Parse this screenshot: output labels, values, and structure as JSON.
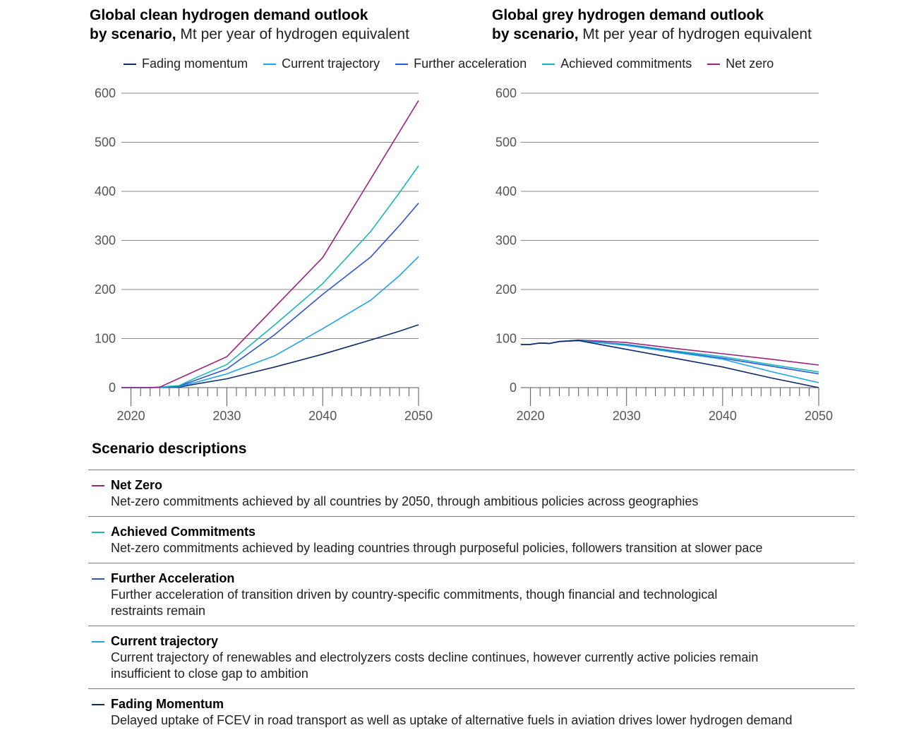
{
  "colors": {
    "fading_momentum": "#0e2a6b",
    "current_trajectory": "#1fa3e8",
    "further_acceleration": "#2f55d6",
    "achieved_commitments": "#19b7b5",
    "net_zero": "#9b2380"
  },
  "legend": [
    {
      "label": "Fading momentum",
      "color": "#0e2a6b"
    },
    {
      "label": "Current trajectory",
      "color": "#1fa3e8"
    },
    {
      "label": "Further acceleration",
      "color": "#2f55d6"
    },
    {
      "label": "Achieved commitments",
      "color": "#19b7b5"
    },
    {
      "label": "Net zero",
      "color": "#9b2380"
    }
  ],
  "chart_data": [
    {
      "type": "line",
      "title": "Global clean hydrogen demand outlook",
      "title_bold_part": "by scenario,",
      "subtitle": "Mt per year of hydrogen equivalent",
      "xlabel": "",
      "ylabel": "",
      "xlim": [
        2019,
        2050
      ],
      "ylim": [
        0,
        600
      ],
      "yticks": [
        0,
        100,
        200,
        300,
        400,
        500,
        600
      ],
      "xticks": [
        2020,
        2030,
        2040,
        2050
      ],
      "grid": true,
      "series": [
        {
          "name": "Fading momentum",
          "color": "#0e2a6b",
          "x": [
            2019,
            2022,
            2025,
            2027,
            2030,
            2035,
            2040,
            2045,
            2048,
            2050
          ],
          "y": [
            0,
            0,
            1,
            8,
            18,
            42,
            68,
            97,
            115,
            128
          ]
        },
        {
          "name": "Current trajectory",
          "color": "#1fa3e8",
          "x": [
            2019,
            2022,
            2025,
            2027,
            2030,
            2035,
            2040,
            2045,
            2048,
            2050
          ],
          "y": [
            0,
            0,
            2,
            12,
            28,
            65,
            120,
            178,
            228,
            267
          ]
        },
        {
          "name": "Further acceleration",
          "color": "#2f55d6",
          "x": [
            2019,
            2022,
            2025,
            2027,
            2030,
            2035,
            2040,
            2045,
            2048,
            2050
          ],
          "y": [
            0,
            0,
            3,
            17,
            38,
            108,
            190,
            266,
            330,
            376
          ]
        },
        {
          "name": "Achieved commitments",
          "color": "#19b7b5",
          "x": [
            2019,
            2022,
            2025,
            2027,
            2030,
            2035,
            2040,
            2045,
            2048,
            2050
          ],
          "y": [
            0,
            0,
            4,
            22,
            47,
            128,
            212,
            318,
            397,
            452
          ]
        },
        {
          "name": "Net zero",
          "color": "#9b2380",
          "x": [
            2019,
            2022,
            2023,
            2030,
            2040,
            2050
          ],
          "y": [
            0,
            0,
            1,
            63,
            265,
            585
          ]
        }
      ]
    },
    {
      "type": "line",
      "title": "Global grey hydrogen demand outlook",
      "title_bold_part": "by scenario,",
      "subtitle": "Mt per year of hydrogen equivalent",
      "xlabel": "",
      "ylabel": "",
      "xlim": [
        2019,
        2050
      ],
      "ylim": [
        0,
        600
      ],
      "yticks": [
        0,
        100,
        200,
        300,
        400,
        500,
        600
      ],
      "xticks": [
        2020,
        2030,
        2040,
        2050
      ],
      "grid": true,
      "series": [
        {
          "name": "Net zero",
          "color": "#9b2380",
          "x": [
            2019,
            2020,
            2021,
            2022,
            2023,
            2025,
            2030,
            2035,
            2040,
            2045,
            2050
          ],
          "y": [
            88,
            88,
            91,
            90,
            94,
            97,
            92,
            80,
            69,
            58,
            46
          ]
        },
        {
          "name": "Achieved commitments",
          "color": "#19b7b5",
          "x": [
            2019,
            2020,
            2021,
            2022,
            2023,
            2025,
            2030,
            2035,
            2040,
            2045,
            2050
          ],
          "y": [
            88,
            88,
            91,
            90,
            94,
            96,
            88,
            75,
            63,
            47,
            32
          ]
        },
        {
          "name": "Further acceleration",
          "color": "#2f55d6",
          "x": [
            2019,
            2020,
            2021,
            2022,
            2023,
            2025,
            2030,
            2035,
            2040,
            2045,
            2050
          ],
          "y": [
            88,
            88,
            91,
            90,
            94,
            96,
            87,
            73,
            60,
            44,
            28
          ]
        },
        {
          "name": "Current trajectory",
          "color": "#1fa3e8",
          "x": [
            2019,
            2020,
            2021,
            2022,
            2023,
            2025,
            2030,
            2035,
            2040,
            2045,
            2050
          ],
          "y": [
            88,
            88,
            91,
            90,
            94,
            96,
            86,
            72,
            58,
            33,
            10
          ]
        },
        {
          "name": "Fading momentum",
          "color": "#0e2a6b",
          "x": [
            2019,
            2020,
            2021,
            2022,
            2023,
            2025,
            2030,
            2035,
            2040,
            2045,
            2050
          ],
          "y": [
            88,
            88,
            91,
            90,
            94,
            96,
            78,
            60,
            42,
            20,
            0
          ]
        }
      ]
    }
  ],
  "descriptions": {
    "heading": "Scenario descriptions",
    "items": [
      {
        "name": "Net Zero",
        "color": "#9b2380",
        "text": "Net-zero commitments achieved by all countries by 2050, through ambitious policies across geographies"
      },
      {
        "name": "Achieved Commitments",
        "color": "#19b7b5",
        "text": "Net-zero commitments achieved by leading countries through purposeful policies, followers transition at slower pace"
      },
      {
        "name": "Further Acceleration",
        "color": "#2f55d6",
        "text": "Further acceleration of transition driven by country-specific commitments, though financial and technological restraints remain"
      },
      {
        "name": "Current trajectory",
        "color": "#1fa3e8",
        "text": "Current trajectory of renewables and electrolyzers costs decline continues, however currently active policies remain insufficient to close gap to ambition"
      },
      {
        "name": "Fading Momentum",
        "color": "#0e2a6b",
        "text": "Delayed uptake of FCEV in road transport as well as uptake of alternative fuels in aviation drives lower hydrogen demand"
      }
    ]
  }
}
